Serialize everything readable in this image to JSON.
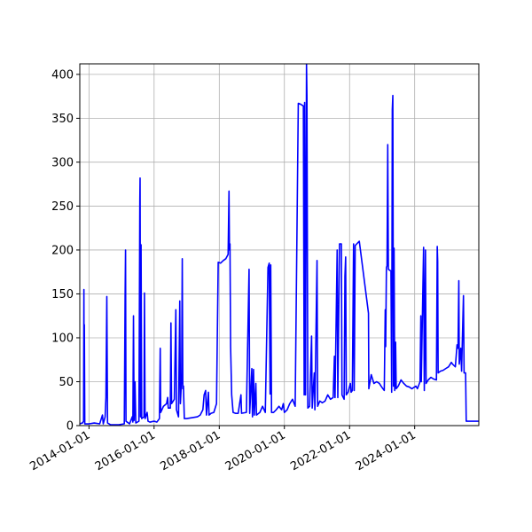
{
  "chart_data": {
    "type": "line",
    "title": "",
    "xlabel": "",
    "ylabel": "",
    "x_axis_kind": "date",
    "xlim": [
      "2013-09-20",
      "2025-12-20"
    ],
    "ylim": [
      0,
      412
    ],
    "grid": true,
    "colors": {
      "series": "#0000ff",
      "grid": "#b0b0b0",
      "frame": "#000000"
    },
    "x_ticks": [
      "2014-01-01",
      "2016-01-01",
      "2018-01-01",
      "2020-01-01",
      "2022-01-01",
      "2024-01-01"
    ],
    "y_ticks": [
      0,
      50,
      100,
      150,
      200,
      250,
      300,
      350,
      400
    ],
    "series": [
      {
        "color": "#0000ff",
        "points": [
          [
            "2013-09-20",
            2
          ],
          [
            "2013-10-20",
            3
          ],
          [
            "2013-11-01",
            5
          ],
          [
            "2013-11-05",
            155
          ],
          [
            "2013-11-08",
            20
          ],
          [
            "2013-11-10",
            115
          ],
          [
            "2013-11-15",
            2
          ],
          [
            "2014-01-01",
            2
          ],
          [
            "2014-03-01",
            3
          ],
          [
            "2014-05-01",
            2
          ],
          [
            "2014-06-01",
            12
          ],
          [
            "2014-06-10",
            2
          ],
          [
            "2014-07-01",
            10
          ],
          [
            "2014-07-10",
            32
          ],
          [
            "2014-07-20",
            147
          ],
          [
            "2014-07-28",
            3
          ],
          [
            "2014-09-01",
            1
          ],
          [
            "2014-12-01",
            1
          ],
          [
            "2015-02-01",
            2
          ],
          [
            "2015-02-10",
            148
          ],
          [
            "2015-02-15",
            200
          ],
          [
            "2015-02-20",
            5
          ],
          [
            "2015-04-01",
            2
          ],
          [
            "2015-05-01",
            10
          ],
          [
            "2015-05-08",
            4
          ],
          [
            "2015-05-15",
            125
          ],
          [
            "2015-05-22",
            6
          ],
          [
            "2015-06-01",
            50
          ],
          [
            "2015-06-10",
            3
          ],
          [
            "2015-07-15",
            5
          ],
          [
            "2015-07-25",
            255
          ],
          [
            "2015-07-28",
            282
          ],
          [
            "2015-08-02",
            10
          ],
          [
            "2015-08-08",
            206
          ],
          [
            "2015-08-15",
            8
          ],
          [
            "2015-09-10",
            10
          ],
          [
            "2015-09-15",
            151
          ],
          [
            "2015-09-22",
            8
          ],
          [
            "2015-10-15",
            15
          ],
          [
            "2015-10-25",
            5
          ],
          [
            "2015-11-15",
            4
          ],
          [
            "2016-01-01",
            5
          ],
          [
            "2016-02-01",
            4
          ],
          [
            "2016-03-01",
            8
          ],
          [
            "2016-03-10",
            88
          ],
          [
            "2016-03-15",
            15
          ],
          [
            "2016-04-15",
            22
          ],
          [
            "2016-05-20",
            25
          ],
          [
            "2016-06-01",
            32
          ],
          [
            "2016-06-08",
            20
          ],
          [
            "2016-07-01",
            20
          ],
          [
            "2016-07-08",
            117
          ],
          [
            "2016-07-15",
            25
          ],
          [
            "2016-08-15",
            30
          ],
          [
            "2016-09-01",
            132
          ],
          [
            "2016-09-08",
            18
          ],
          [
            "2016-10-01",
            10
          ],
          [
            "2016-10-15",
            142
          ],
          [
            "2016-10-22",
            25
          ],
          [
            "2016-11-05",
            55
          ],
          [
            "2016-11-12",
            190
          ],
          [
            "2016-11-18",
            42
          ],
          [
            "2016-11-25",
            45
          ],
          [
            "2016-12-05",
            8
          ],
          [
            "2017-01-01",
            8
          ],
          [
            "2017-05-01",
            10
          ],
          [
            "2017-06-01",
            12
          ],
          [
            "2017-07-01",
            18
          ],
          [
            "2017-07-15",
            35
          ],
          [
            "2017-08-01",
            40
          ],
          [
            "2017-08-10",
            12
          ],
          [
            "2017-09-01",
            38
          ],
          [
            "2017-09-08",
            12
          ],
          [
            "2017-10-01",
            14
          ],
          [
            "2017-11-01",
            15
          ],
          [
            "2017-12-01",
            25
          ],
          [
            "2017-12-20",
            186
          ],
          [
            "2018-01-15",
            185
          ],
          [
            "2018-02-15",
            188
          ],
          [
            "2018-03-15",
            190
          ],
          [
            "2018-04-10",
            195
          ],
          [
            "2018-04-20",
            267
          ],
          [
            "2018-04-25",
            200
          ],
          [
            "2018-05-01",
            207
          ],
          [
            "2018-05-08",
            90
          ],
          [
            "2018-05-20",
            35
          ],
          [
            "2018-06-05",
            15
          ],
          [
            "2018-07-01",
            14
          ],
          [
            "2018-08-01",
            14
          ],
          [
            "2018-09-01",
            35
          ],
          [
            "2018-09-08",
            14
          ],
          [
            "2018-11-01",
            15
          ],
          [
            "2018-12-01",
            178
          ],
          [
            "2018-12-08",
            14
          ],
          [
            "2019-01-01",
            65
          ],
          [
            "2019-01-08",
            10
          ],
          [
            "2019-01-20",
            64
          ],
          [
            "2019-01-28",
            12
          ],
          [
            "2019-02-15",
            48
          ],
          [
            "2019-02-22",
            12
          ],
          [
            "2019-04-01",
            15
          ],
          [
            "2019-05-01",
            22
          ],
          [
            "2019-06-01",
            15
          ],
          [
            "2019-07-01",
            180
          ],
          [
            "2019-07-15",
            185
          ],
          [
            "2019-07-25",
            36
          ],
          [
            "2019-08-01",
            183
          ],
          [
            "2019-08-10",
            15
          ],
          [
            "2019-09-01",
            15
          ],
          [
            "2019-10-01",
            18
          ],
          [
            "2019-11-01",
            22
          ],
          [
            "2019-12-01",
            18
          ],
          [
            "2019-12-20",
            25
          ],
          [
            "2020-01-01",
            15
          ],
          [
            "2020-02-01",
            18
          ],
          [
            "2020-03-01",
            25
          ],
          [
            "2020-04-01",
            30
          ],
          [
            "2020-05-01",
            22
          ],
          [
            "2020-06-05",
            367
          ],
          [
            "2020-07-01",
            366
          ],
          [
            "2020-08-01",
            364
          ],
          [
            "2020-08-10",
            35
          ],
          [
            "2020-08-15",
            368
          ],
          [
            "2020-08-25",
            35
          ],
          [
            "2020-09-05",
            412
          ],
          [
            "2020-09-10",
            375
          ],
          [
            "2020-09-20",
            20
          ],
          [
            "2020-10-10",
            22
          ],
          [
            "2020-11-01",
            102
          ],
          [
            "2020-11-08",
            20
          ],
          [
            "2020-12-01",
            60
          ],
          [
            "2020-12-08",
            18
          ],
          [
            "2021-01-01",
            188
          ],
          [
            "2021-01-08",
            22
          ],
          [
            "2021-02-01",
            28
          ],
          [
            "2021-03-01",
            26
          ],
          [
            "2021-04-01",
            28
          ],
          [
            "2021-05-01",
            35
          ],
          [
            "2021-06-01",
            30
          ],
          [
            "2021-07-01",
            32
          ],
          [
            "2021-07-15",
            79
          ],
          [
            "2021-07-22",
            32
          ],
          [
            "2021-08-15",
            200
          ],
          [
            "2021-08-22",
            32
          ],
          [
            "2021-09-10",
            207
          ],
          [
            "2021-10-01",
            207
          ],
          [
            "2021-10-08",
            35
          ],
          [
            "2021-11-01",
            30
          ],
          [
            "2021-11-10",
            170
          ],
          [
            "2021-11-18",
            192
          ],
          [
            "2021-11-25",
            35
          ],
          [
            "2021-12-15",
            38
          ],
          [
            "2022-01-10",
            48
          ],
          [
            "2022-01-18",
            38
          ],
          [
            "2022-02-01",
            40
          ],
          [
            "2022-02-15",
            207
          ],
          [
            "2022-02-22",
            40
          ],
          [
            "2022-03-05",
            205
          ],
          [
            "2022-04-01",
            208
          ],
          [
            "2022-04-20",
            210
          ],
          [
            "2022-08-01",
            128
          ],
          [
            "2022-08-05",
            42
          ],
          [
            "2022-09-01",
            58
          ],
          [
            "2022-10-01",
            48
          ],
          [
            "2022-11-01",
            50
          ],
          [
            "2022-12-01",
            48
          ],
          [
            "2022-12-20",
            45
          ],
          [
            "2023-01-10",
            42
          ],
          [
            "2023-01-25",
            40
          ],
          [
            "2023-02-05",
            132
          ],
          [
            "2023-02-10",
            90
          ],
          [
            "2023-02-18",
            180
          ],
          [
            "2023-02-25",
            182
          ],
          [
            "2023-03-05",
            320
          ],
          [
            "2023-03-12",
            178
          ],
          [
            "2023-04-10",
            176
          ],
          [
            "2023-04-18",
            38
          ],
          [
            "2023-04-25",
            360
          ],
          [
            "2023-05-01",
            376
          ],
          [
            "2023-05-08",
            45
          ],
          [
            "2023-05-15",
            202
          ],
          [
            "2023-05-22",
            40
          ],
          [
            "2023-06-01",
            95
          ],
          [
            "2023-06-08",
            42
          ],
          [
            "2023-07-01",
            45
          ],
          [
            "2023-08-01",
            52
          ],
          [
            "2023-09-01",
            48
          ],
          [
            "2023-10-01",
            45
          ],
          [
            "2023-11-01",
            44
          ],
          [
            "2023-12-01",
            42
          ],
          [
            "2024-01-15",
            45
          ],
          [
            "2024-02-01",
            42
          ],
          [
            "2024-03-01",
            50
          ],
          [
            "2024-03-10",
            125
          ],
          [
            "2024-03-15",
            50
          ],
          [
            "2024-04-10",
            203
          ],
          [
            "2024-04-18",
            40
          ],
          [
            "2024-05-01",
            200
          ],
          [
            "2024-05-08",
            48
          ],
          [
            "2024-06-01",
            52
          ],
          [
            "2024-07-01",
            55
          ],
          [
            "2024-08-01",
            53
          ],
          [
            "2024-09-01",
            52
          ],
          [
            "2024-09-10",
            204
          ],
          [
            "2024-09-15",
            187
          ],
          [
            "2024-09-20",
            60
          ],
          [
            "2024-10-15",
            62
          ],
          [
            "2024-11-15",
            63
          ],
          [
            "2024-12-15",
            65
          ],
          [
            "2025-01-15",
            67
          ],
          [
            "2025-02-15",
            72
          ],
          [
            "2025-03-01",
            70
          ],
          [
            "2025-04-01",
            67
          ],
          [
            "2025-04-20",
            92
          ],
          [
            "2025-05-01",
            88
          ],
          [
            "2025-05-10",
            165
          ],
          [
            "2025-05-15",
            70
          ],
          [
            "2025-06-01",
            88
          ],
          [
            "2025-06-10",
            62
          ],
          [
            "2025-07-01",
            148
          ],
          [
            "2025-07-08",
            60
          ],
          [
            "2025-07-25",
            60
          ],
          [
            "2025-08-01",
            5
          ],
          [
            "2025-10-01",
            5
          ],
          [
            "2025-12-20",
            5
          ]
        ]
      }
    ]
  }
}
